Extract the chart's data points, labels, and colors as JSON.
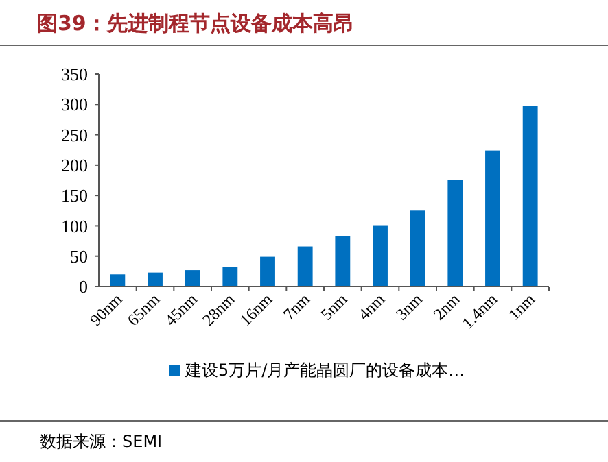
{
  "chart_data": {
    "type": "bar",
    "title": "图39：先进制程节点设备成本高昂",
    "categories": [
      "90nm",
      "65nm",
      "45nm",
      "28nm",
      "16nm",
      "7nm",
      "5nm",
      "4nm",
      "3nm",
      "2nm",
      "1.4nm",
      "1nm"
    ],
    "series": [
      {
        "name": "建设5万片/月产能晶圆厂的设备成本…",
        "color": "#0070c0",
        "values": [
          20,
          23,
          27,
          32,
          49,
          66,
          83,
          101,
          125,
          176,
          224,
          297
        ]
      }
    ],
    "ylim": [
      0,
      350
    ],
    "yticks": [
      0,
      50,
      100,
      150,
      200,
      250,
      300,
      350
    ],
    "grid": false,
    "legend": "bottom",
    "annotations": [
      "数据来源：SEMI"
    ]
  }
}
